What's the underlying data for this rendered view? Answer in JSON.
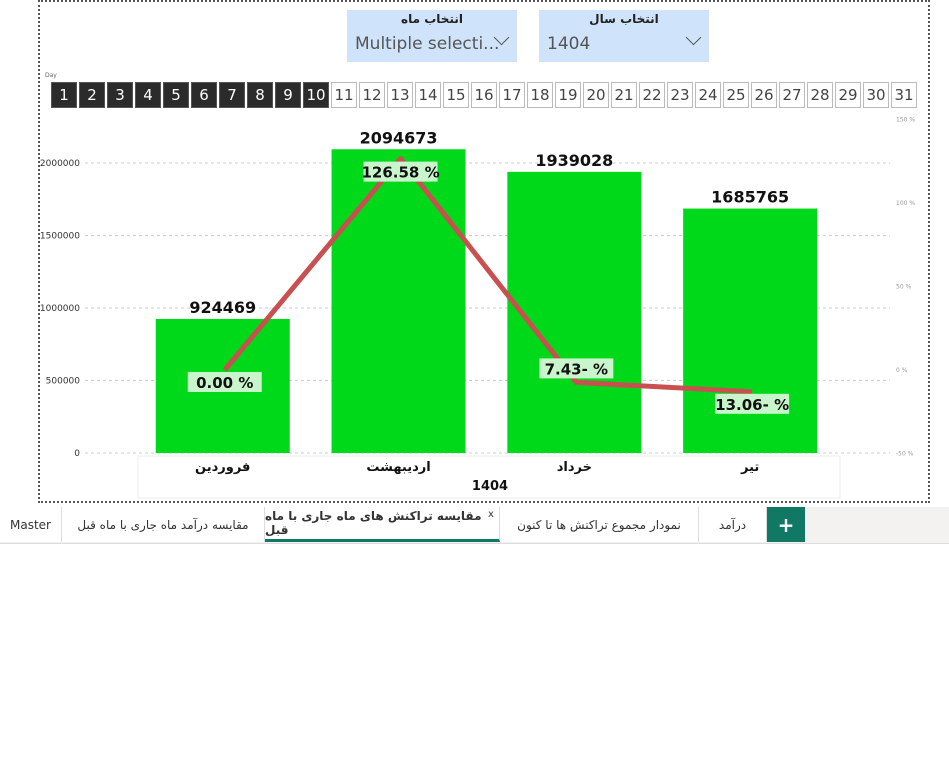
{
  "slicers": {
    "month": {
      "title": "انتخاب ماه",
      "value": "Multiple selecti..."
    },
    "year": {
      "title": "انتخاب سال",
      "value": "1404"
    }
  },
  "day_slicer": {
    "label": "Day",
    "days": [
      "1",
      "2",
      "3",
      "4",
      "5",
      "6",
      "7",
      "8",
      "9",
      "10",
      "11",
      "12",
      "13",
      "14",
      "15",
      "16",
      "17",
      "18",
      "19",
      "20",
      "21",
      "22",
      "23",
      "24",
      "25",
      "26",
      "27",
      "28",
      "29",
      "30",
      "31"
    ],
    "selected_count": 10
  },
  "chart_data": {
    "type": "bar+line",
    "categories": [
      "فروردین",
      "اردیبهشت",
      "خرداد",
      "تیر"
    ],
    "x_group_label": "1404",
    "bar_series": {
      "values": [
        924469,
        2094673,
        1939028,
        1685765
      ],
      "color": "#00d81a"
    },
    "line_series": {
      "values": [
        0.0,
        126.58,
        -7.43,
        -13.06
      ],
      "labels": [
        "0.00 %",
        "126.58 %",
        "7.43- %",
        "13.06- %"
      ],
      "color": "#c85050"
    },
    "y_left": {
      "range": [
        0,
        2200000
      ],
      "ticks": [
        "0",
        "500000",
        "1000000",
        "1500000",
        "2000000"
      ]
    },
    "y_right": {
      "range": [
        -50,
        150
      ],
      "ticks": [
        "-50 %",
        "0 %",
        "50 %",
        "100 %",
        "150 %"
      ]
    },
    "grid": true
  },
  "tabs": [
    {
      "label": "Master"
    },
    {
      "label": "مقایسه درآمد ماه جاری با ماه قبل"
    },
    {
      "label": "مقایسه تراکنش های ماه جاری با ماه قبل",
      "active": true
    },
    {
      "label": "نمودار مجموع تراکنش ها تا کنون"
    },
    {
      "label": "درآمد"
    }
  ],
  "add_tab": "+",
  "close_tab": "x"
}
